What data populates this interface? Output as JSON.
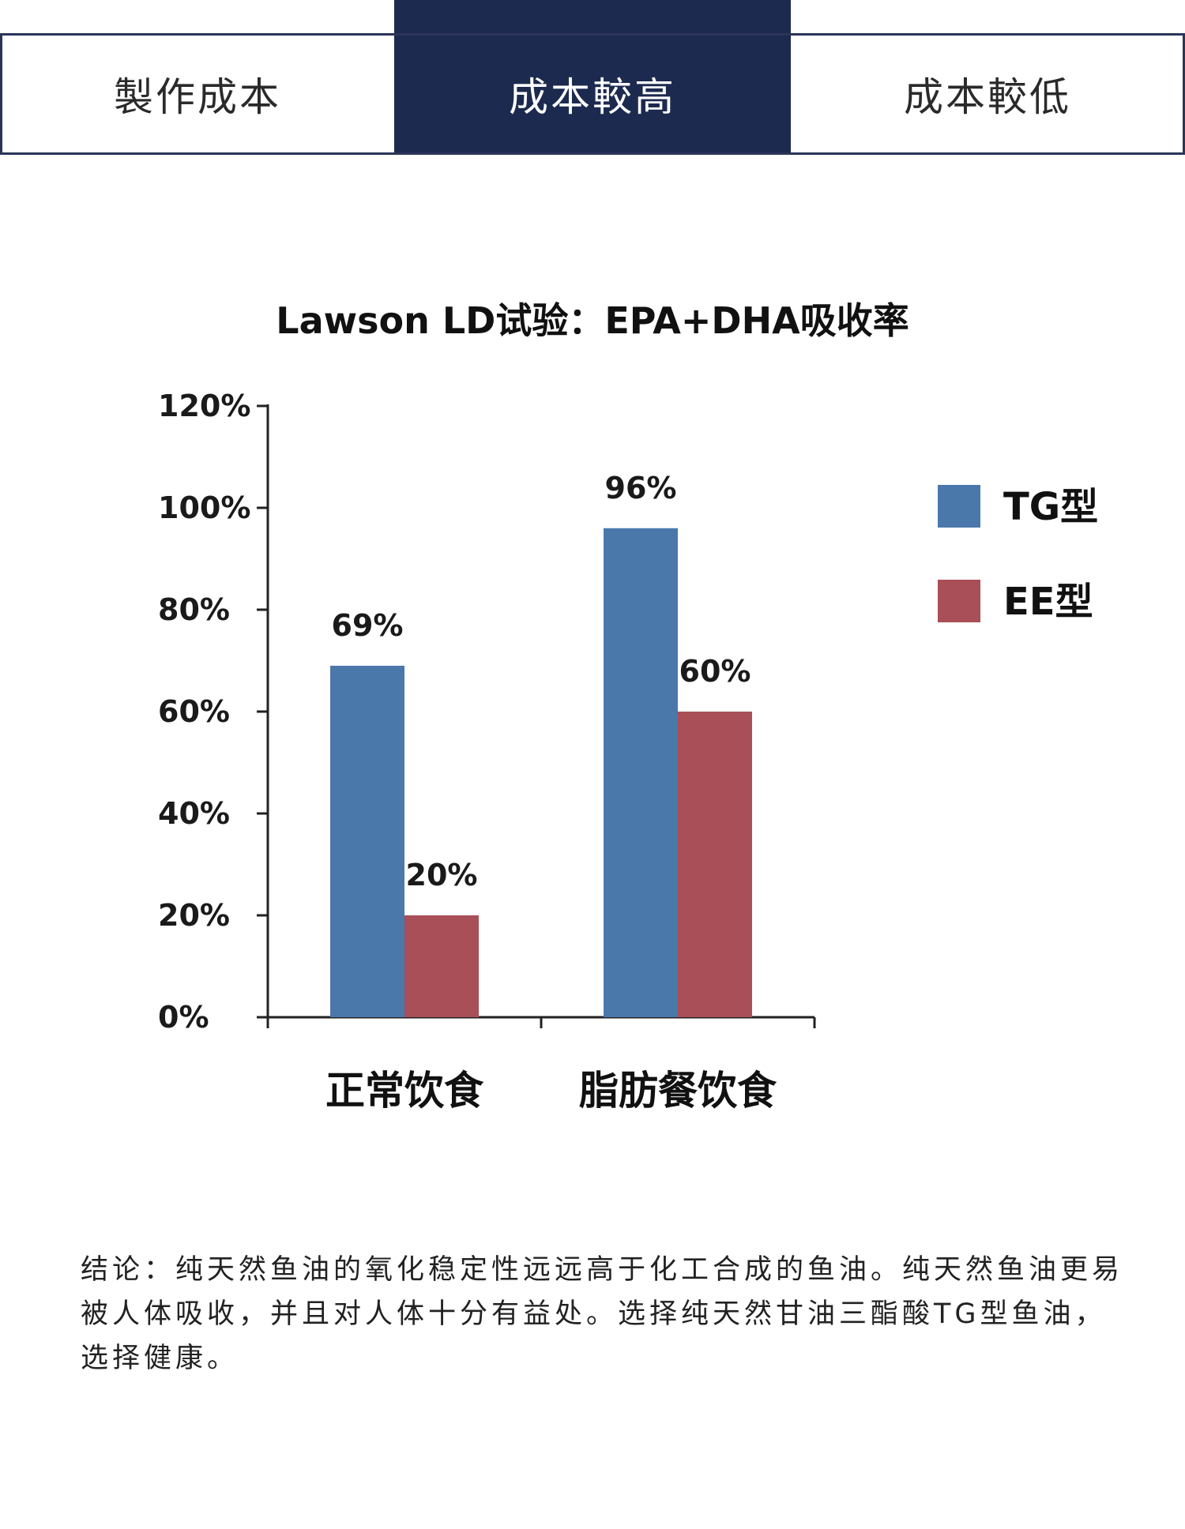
{
  "comparison_row": {
    "cells": [
      "製作成本",
      "成本較高",
      "成本較低"
    ]
  },
  "chart_data": {
    "type": "bar",
    "title": "Lawson LD试验：EPA+DHA吸收率",
    "categories": [
      "正常饮食",
      "脂肪餐饮食"
    ],
    "series": [
      {
        "name": "TG型",
        "values": [
          69,
          96
        ],
        "labels": [
          "69%",
          "96%"
        ],
        "color": "#4a78ab"
      },
      {
        "name": "EE型",
        "values": [
          20,
          60
        ],
        "labels": [
          "20%",
          "60%"
        ],
        "color": "#a84f57"
      }
    ],
    "y_ticks": [
      "0%",
      "20%",
      "40%",
      "60%",
      "80%",
      "100%",
      "120%"
    ],
    "ylim": [
      0,
      120
    ],
    "xlabel": "",
    "ylabel": "",
    "grid": false,
    "legend": "right"
  },
  "conclusion": "结论：纯天然鱼油的氧化稳定性远远高于化工合成的鱼油。纯天然鱼油更易被人体吸收，并且对人体十分有益处。选择纯天然甘油三酯酸TG型鱼油，选择健康。"
}
